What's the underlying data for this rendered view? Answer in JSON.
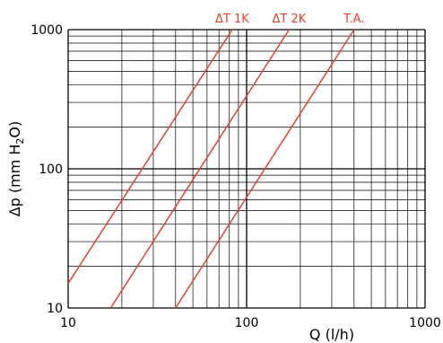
{
  "chart_data": {
    "type": "line",
    "x_scale": "log",
    "y_scale": "log",
    "xlim": [
      10,
      1000
    ],
    "ylim": [
      10,
      1000
    ],
    "xlabel": "Q (l/h)",
    "ylabel": {
      "prefix": "Δp (mm H",
      "sub": "2",
      "suffix": "O)"
    },
    "x_ticks": [
      {
        "value": 10,
        "label": "10"
      },
      {
        "value": 100,
        "label": "100"
      },
      {
        "value": 1000,
        "label": "1000"
      }
    ],
    "y_ticks": [
      {
        "value": 10,
        "label": "10"
      },
      {
        "value": 100,
        "label": "100"
      },
      {
        "value": 1000,
        "label": "1000"
      }
    ],
    "grid": true,
    "line_color": "#e8402a",
    "series": [
      {
        "name": "ΔT 1K",
        "x": [
          10,
          83
        ],
        "y": [
          15,
          1000
        ]
      },
      {
        "name": "ΔT 2K",
        "x": [
          17.3,
          173
        ],
        "y": [
          10,
          1000
        ]
      },
      {
        "name": "T.A.",
        "x": [
          40,
          400
        ],
        "y": [
          10,
          1000
        ]
      }
    ]
  }
}
